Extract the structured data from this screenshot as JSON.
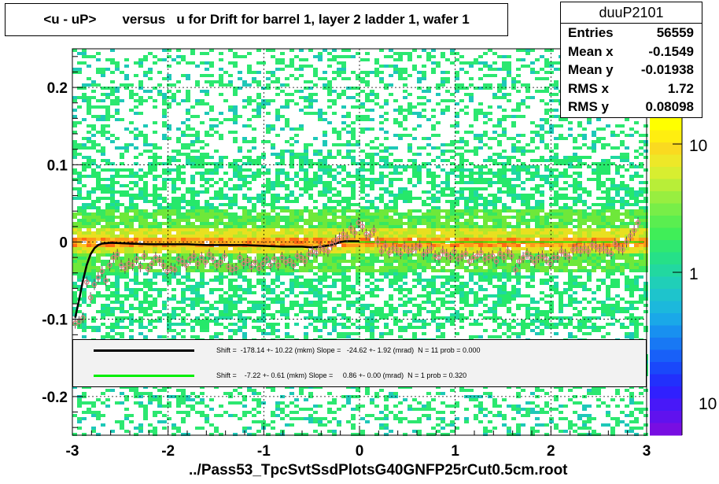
{
  "title": "<u - uP>       versus   u for Drift for barrel 1, layer 2 ladder 1, wafer 1",
  "file_label": "../Pass53_TpcSvtSsdPlotsG40GNFP25rCut0.5cm.root",
  "stats": {
    "name": "duuP2101",
    "rows": [
      {
        "label": "Entries",
        "value": "56559"
      },
      {
        "label": "Mean x",
        "value": "-0.1549"
      },
      {
        "label": "Mean y",
        "value": "-0.01938"
      },
      {
        "label": "RMS x",
        "value": "1.72"
      },
      {
        "label": "RMS y",
        "value": "0.08098"
      }
    ]
  },
  "fit_legend": [
    {
      "text": "Shift =  -178.14 +- 10.22 (mkm) Slope =   -24.62 +- 1.92 (mrad)  N = 11 prob = 0.000",
      "color": "#000000"
    },
    {
      "text": "Shift =    -7.22 +- 0.61 (mkm) Slope =     0.86 +- 0.00 (mrad)  N = 1 prob = 0.320",
      "color": "#00ee00"
    }
  ],
  "colors": {
    "profile_marker": "#e07a7a",
    "fit_line": "#000000",
    "linear_fit": "#00ee00"
  },
  "chart_data": {
    "type": "heatmap",
    "xlim": [
      -3,
      3
    ],
    "ylim": [
      -0.25,
      0.25
    ],
    "x_ticks": [
      -3,
      -2,
      -1,
      0,
      1,
      2,
      3
    ],
    "y_ticks": [
      -0.2,
      -0.1,
      0,
      0.1,
      0.2
    ],
    "x_tick_labels": [
      "-3",
      "-2",
      "-1",
      "0",
      "1",
      "2",
      "3"
    ],
    "y_tick_labels": [
      "-0.2",
      "-0.1",
      "0",
      "0.1",
      "0.2"
    ],
    "grid": true,
    "colorbar": {
      "scale": "log",
      "tick_labels": [
        "10",
        "1",
        "10"
      ]
    },
    "profile": {
      "x": [
        -2.97,
        -2.93,
        -2.89,
        -2.85,
        -2.81,
        -2.77,
        -2.73,
        -2.69,
        -2.65,
        -2.61,
        -2.57,
        -2.53,
        -2.49,
        -2.45,
        -2.41,
        -2.37,
        -2.33,
        -2.29,
        -2.25,
        -2.21,
        -2.17,
        -2.13,
        -2.09,
        -2.05,
        -2.01,
        -1.97,
        -1.93,
        -1.89,
        -1.85,
        -1.81,
        -1.77,
        -1.73,
        -1.69,
        -1.65,
        -1.61,
        -1.57,
        -1.53,
        -1.49,
        -1.45,
        -1.41,
        -1.37,
        -1.33,
        -1.29,
        -1.25,
        -1.21,
        -1.17,
        -1.13,
        -1.09,
        -1.05,
        -1.01,
        -0.97,
        -0.93,
        -0.89,
        -0.85,
        -0.81,
        -0.77,
        -0.73,
        -0.69,
        -0.65,
        -0.61,
        -0.57,
        -0.53,
        -0.49,
        -0.45,
        -0.41,
        -0.37,
        -0.33,
        -0.29,
        -0.25,
        -0.21,
        -0.17,
        -0.13,
        -0.09,
        -0.05,
        -0.01,
        0.03,
        0.07,
        0.11,
        0.15,
        0.19,
        0.23,
        0.27,
        0.31,
        0.35,
        0.39,
        0.43,
        0.47,
        0.51,
        0.55,
        0.59,
        0.63,
        0.67,
        0.71,
        0.75,
        0.79,
        0.83,
        0.87,
        0.91,
        0.95,
        0.99,
        1.03,
        1.07,
        1.11,
        1.15,
        1.19,
        1.23,
        1.27,
        1.31,
        1.35,
        1.39,
        1.43,
        1.47,
        1.51,
        1.55,
        1.59,
        1.63,
        1.67,
        1.71,
        1.75,
        1.79,
        1.83,
        1.87,
        1.91,
        1.95,
        1.99,
        2.03,
        2.07,
        2.11,
        2.15,
        2.19,
        2.23,
        2.27,
        2.31,
        2.35,
        2.39,
        2.43,
        2.47,
        2.51,
        2.55,
        2.59,
        2.63,
        2.67,
        2.71,
        2.75,
        2.79,
        2.83,
        2.87,
        2.91
      ],
      "y": [
        -0.105,
        -0.103,
        -0.098,
        -0.052,
        -0.072,
        -0.055,
        -0.046,
        -0.038,
        -0.05,
        -0.03,
        -0.02,
        -0.016,
        -0.03,
        -0.034,
        -0.028,
        -0.03,
        -0.022,
        -0.032,
        -0.018,
        -0.035,
        -0.028,
        -0.02,
        -0.024,
        -0.03,
        -0.038,
        -0.034,
        -0.036,
        -0.022,
        -0.025,
        -0.03,
        -0.022,
        -0.018,
        -0.028,
        -0.02,
        -0.026,
        -0.016,
        -0.022,
        -0.03,
        -0.026,
        -0.018,
        -0.032,
        -0.036,
        -0.034,
        -0.02,
        -0.028,
        -0.024,
        -0.032,
        -0.026,
        -0.034,
        -0.028,
        -0.022,
        -0.03,
        -0.022,
        -0.03,
        -0.02,
        -0.026,
        -0.024,
        -0.03,
        -0.018,
        -0.02,
        -0.025,
        -0.016,
        -0.012,
        -0.014,
        -0.008,
        -0.01,
        -0.012,
        -0.004,
        0.002,
        0.005,
        0.01,
        0.006,
        0.018,
        0.012,
        0.025,
        0.02,
        0.01,
        0.008,
        0.015,
        0.0,
        -0.012,
        -0.005,
        -0.014,
        -0.008,
        -0.01,
        -0.015,
        -0.006,
        -0.012,
        -0.01,
        -0.008,
        -0.005,
        -0.016,
        -0.012,
        -0.008,
        -0.018,
        -0.02,
        -0.012,
        -0.016,
        -0.02,
        -0.012,
        -0.022,
        -0.018,
        -0.015,
        -0.025,
        -0.02,
        -0.018,
        -0.014,
        -0.022,
        -0.02,
        -0.018,
        -0.025,
        -0.015,
        -0.02,
        -0.012,
        -0.018,
        -0.036,
        -0.025,
        -0.02,
        -0.015,
        -0.02,
        -0.026,
        -0.02,
        -0.018,
        -0.022,
        -0.028,
        -0.02,
        -0.02,
        -0.012,
        -0.016,
        -0.02,
        -0.01,
        -0.008,
        -0.012,
        -0.008,
        -0.012,
        -0.004,
        -0.006,
        -0.01,
        -0.008,
        -0.012,
        -0.015,
        -0.002,
        -0.008,
        -0.01,
        0.0,
        0.008,
        0.015,
        0.025,
        0.03,
        0.035
      ]
    },
    "fit_curve": {
      "x": [
        -2.97,
        -2.93,
        -2.89,
        -2.85,
        -2.81,
        -2.77,
        -2.73,
        -2.69,
        -2.6,
        -2.4,
        -2.2,
        -2.0,
        -1.8,
        -1.6,
        -1.4,
        -1.2,
        -1.0,
        -0.8,
        -0.6,
        -0.5,
        -0.4,
        -0.35,
        -0.3,
        -0.25,
        -0.2,
        -0.15,
        -0.1,
        -0.05,
        0.0
      ],
      "y": [
        -0.098,
        -0.075,
        -0.05,
        -0.03,
        -0.016,
        -0.008,
        -0.004,
        -0.002,
        -0.001,
        -0.002,
        -0.003,
        -0.003,
        -0.003,
        -0.004,
        -0.004,
        -0.004,
        -0.005,
        -0.006,
        -0.006,
        -0.007,
        -0.006,
        -0.005,
        -0.004,
        -0.002,
        0.0,
        0.001,
        0.001,
        0.001,
        0.001
      ]
    },
    "linear_fit": {
      "x": [
        -0.2,
        2.97
      ],
      "y": [
        0.0,
        0.0
      ]
    }
  }
}
